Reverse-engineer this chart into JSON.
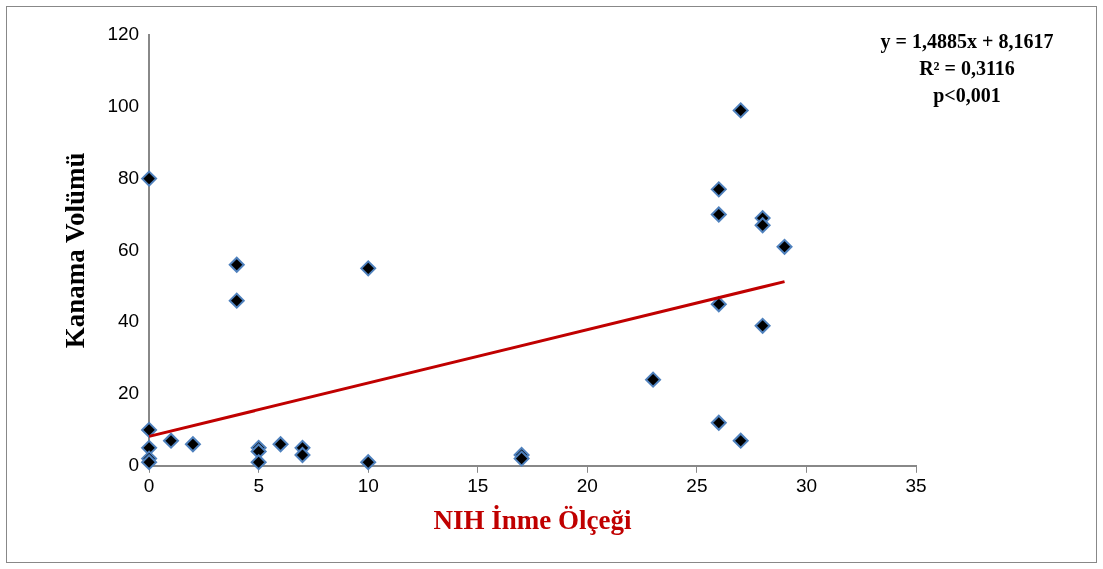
{
  "chart_data": {
    "type": "scatter",
    "xlabel": "NIH İnme Ölçeği",
    "ylabel": "Kanama Volümü",
    "annotations": [
      "y = 1,4885x + 8,1617",
      "R² = 0,3116",
      "p<0,001"
    ],
    "xlim": [
      0,
      35
    ],
    "xticks": [
      0,
      5,
      10,
      15,
      20,
      25,
      30,
      35
    ],
    "ylim": [
      0,
      120
    ],
    "yticks": [
      0,
      20,
      40,
      60,
      80,
      100,
      120
    ],
    "grid": false,
    "legend": false,
    "marker": "diamond",
    "series": [
      {
        "type": "scatter",
        "color": "#000000",
        "x": [
          0,
          0,
          0,
          0,
          0,
          1,
          2,
          4,
          4,
          5,
          5,
          5,
          6,
          7,
          7,
          10,
          10,
          17,
          17,
          23,
          26,
          26,
          26,
          26,
          27,
          27,
          28,
          28,
          28,
          29
        ],
        "values": [
          80,
          10,
          5,
          2,
          1,
          7,
          6,
          56,
          46,
          5,
          4,
          1,
          6,
          5,
          3,
          55,
          1,
          3,
          2,
          24,
          77,
          70,
          45,
          12,
          99,
          7,
          69,
          67,
          39,
          61
        ]
      },
      {
        "type": "line",
        "color": "#c00000",
        "marker": "none",
        "x": [
          0,
          29
        ],
        "values": [
          8.2,
          51.3
        ]
      }
    ]
  }
}
